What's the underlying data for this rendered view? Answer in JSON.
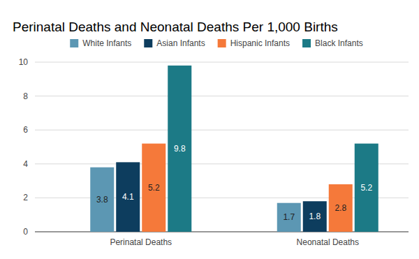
{
  "chart_data": {
    "type": "bar",
    "title": "Perinatal Deaths and Neonatal Deaths Per 1,000 Births",
    "categories": [
      "Perinatal Deaths",
      "Neonatal Deaths"
    ],
    "series": [
      {
        "name": "White Infants",
        "color": "#5c97b3",
        "values": [
          3.8,
          1.7
        ]
      },
      {
        "name": "Asian Infants",
        "color": "#0d3d5e",
        "values": [
          4.1,
          1.8
        ]
      },
      {
        "name": "Hispanic Infants",
        "color": "#f5793a",
        "values": [
          5.2,
          2.8
        ]
      },
      {
        "name": "Black Infants",
        "color": "#1c7a86",
        "values": [
          9.8,
          5.2
        ]
      }
    ],
    "ylim": [
      0,
      10
    ],
    "yticks": [
      0,
      2,
      4,
      6,
      8,
      10
    ],
    "grid": true,
    "legend": "top",
    "data_labels": true
  }
}
